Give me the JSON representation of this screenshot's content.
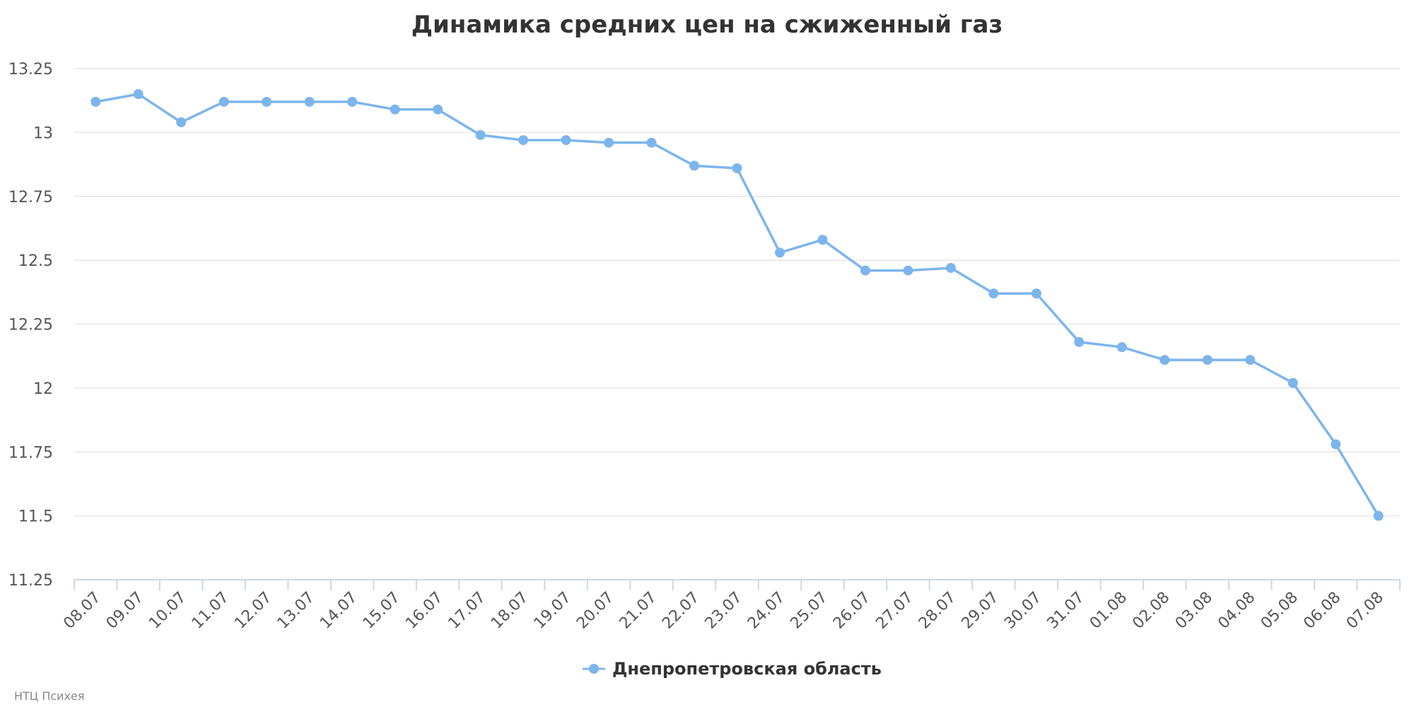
{
  "chart_data": {
    "type": "line",
    "title": "Динамика средних цен на сжиженный газ",
    "xlabel": "",
    "ylabel": "",
    "ylim": [
      11.25,
      13.25
    ],
    "yticks": [
      "13.25",
      "13",
      "12.75",
      "12.5",
      "12.25",
      "12",
      "11.75",
      "11.5",
      "11.25"
    ],
    "categories": [
      "08.07",
      "09.07",
      "10.07",
      "11.07",
      "12.07",
      "13.07",
      "14.07",
      "15.07",
      "16.07",
      "17.07",
      "18.07",
      "19.07",
      "20.07",
      "21.07",
      "22.07",
      "23.07",
      "24.07",
      "25.07",
      "26.07",
      "27.07",
      "28.07",
      "29.07",
      "30.07",
      "31.07",
      "01.08",
      "02.08",
      "03.08",
      "04.08",
      "05.08",
      "06.08",
      "07.08"
    ],
    "series": [
      {
        "name": "Днепропетровская область",
        "color": "#7cb5ec",
        "values": [
          13.12,
          13.15,
          13.04,
          13.12,
          13.12,
          13.12,
          13.12,
          13.09,
          13.09,
          12.99,
          12.97,
          12.97,
          12.96,
          12.96,
          12.87,
          12.86,
          12.53,
          12.58,
          12.46,
          12.46,
          12.47,
          12.37,
          12.37,
          12.18,
          12.16,
          12.11,
          12.11,
          12.11,
          12.02,
          11.78,
          11.5
        ]
      }
    ],
    "grid": true,
    "legend": "bottom-center"
  },
  "credits": "НТЦ Психея"
}
